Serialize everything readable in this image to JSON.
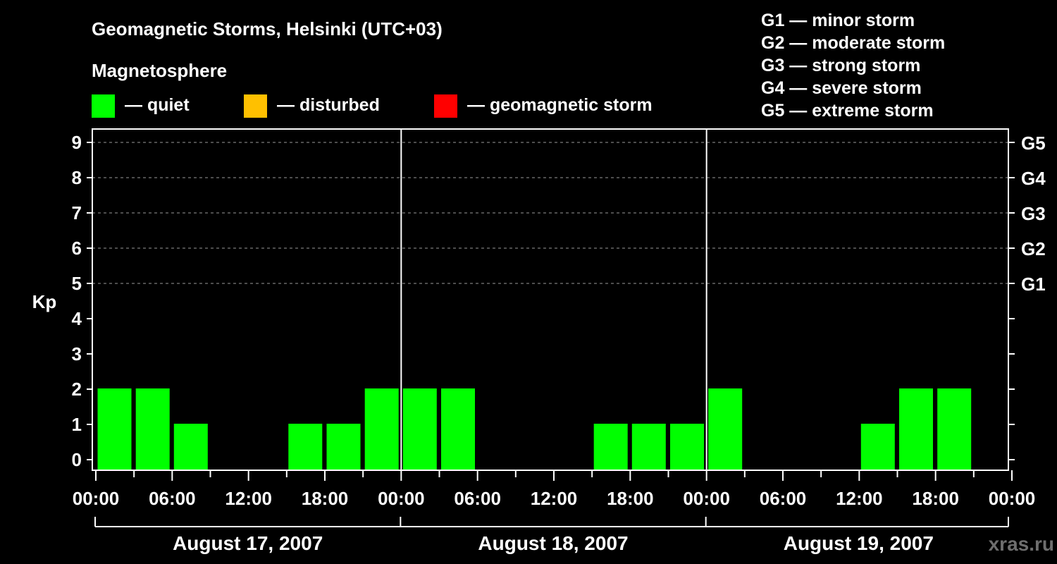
{
  "chart_data": {
    "type": "bar",
    "title": "Geomagnetic Storms, Helsinki (UTC+03)",
    "ylabel": "Kp",
    "ylim": [
      0,
      9
    ],
    "yticks": [
      "0",
      "1",
      "2",
      "3",
      "4",
      "5",
      "6",
      "7",
      "8",
      "9"
    ],
    "storm_scale_ticks": [
      {
        "kp": 5,
        "label": "G1"
      },
      {
        "kp": 6,
        "label": "G2"
      },
      {
        "kp": 7,
        "label": "G3"
      },
      {
        "kp": 8,
        "label": "G4"
      },
      {
        "kp": 9,
        "label": "G5"
      }
    ],
    "gridlines_kp": [
      5,
      6,
      7,
      8,
      9
    ],
    "magnetosphere_legend": {
      "title": "Magnetosphere",
      "items": [
        {
          "label": "— quiet",
          "color": "#00ff00"
        },
        {
          "label": "— disturbed",
          "color": "#ffc000"
        },
        {
          "label": "— geomagnetic storm",
          "color": "#ff0000"
        }
      ]
    },
    "storm_legend": [
      "G1 — minor storm",
      "G2 — moderate storm",
      "G3 — strong storm",
      "G4 — severe storm",
      "G5 — extreme storm"
    ],
    "xticks": [
      "00:00",
      "06:00",
      "12:00",
      "18:00",
      "00:00",
      "06:00",
      "12:00",
      "18:00",
      "00:00",
      "06:00",
      "12:00",
      "18:00",
      "00:00"
    ],
    "days": [
      {
        "date": "August 17, 2007",
        "values": [
          2,
          2,
          1,
          0,
          0,
          1,
          1,
          2
        ]
      },
      {
        "date": "August 18, 2007",
        "values": [
          2,
          2,
          0,
          0,
          0,
          1,
          1,
          1
        ]
      },
      {
        "date": "August 19, 2007",
        "values": [
          2,
          0,
          0,
          0,
          1,
          2,
          2,
          0
        ]
      }
    ],
    "colors": {
      "background": "#000000",
      "foreground": "#ffffff",
      "quiet": "#00ff00",
      "disturbed": "#ffc000",
      "storm": "#ff0000",
      "grid": "#9a9a9a"
    }
  },
  "credit": "xras.ru"
}
